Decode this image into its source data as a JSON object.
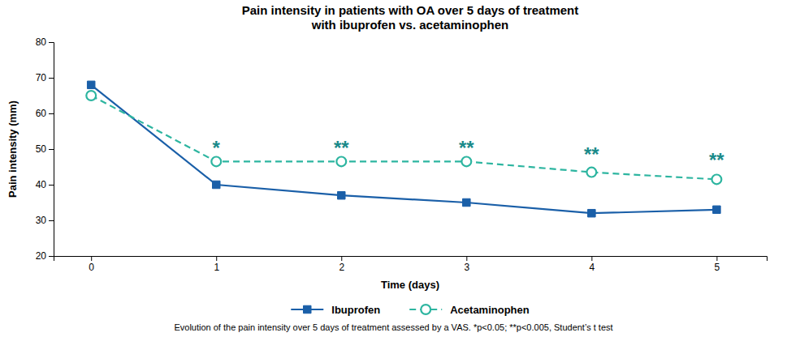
{
  "chart_data": {
    "type": "line",
    "title": "Pain intensity in patients with OA over 5 days of treatment\nwith ibuprofen vs. acetaminophen",
    "x_label": "Time (days)",
    "y_label": "Pain intensity (mm)",
    "footnote": "Evolution of the pain intensity over 5 days of treatment assessed by a VAS. *p<0.05; **p<0.005, Student’s t test",
    "x": [
      0,
      1,
      2,
      3,
      4,
      5
    ],
    "series": [
      {
        "name": "Ibuprofen",
        "color": "#1a5fa8",
        "marker": "square",
        "line_style": "solid",
        "values": [
          68,
          40,
          37,
          35,
          32,
          33
        ]
      },
      {
        "name": "Acetaminophen",
        "color": "#2db5a0",
        "marker": "circle",
        "line_style": "dashed",
        "values": [
          65,
          46.5,
          46.5,
          46.5,
          43.5,
          41.5
        ]
      }
    ],
    "annotations": [
      {
        "text": "*",
        "x": 1,
        "y": 51.5,
        "color": "#1a8a8a"
      },
      {
        "text": "**",
        "x": 2,
        "y": 51.5,
        "color": "#1a8a8a"
      },
      {
        "text": "**",
        "x": 3,
        "y": 51.5,
        "color": "#1a8a8a"
      },
      {
        "text": "**",
        "x": 4,
        "y": 49.5,
        "color": "#1a8a8a"
      },
      {
        "text": "**",
        "x": 5,
        "y": 48.0,
        "color": "#1a8a8a"
      }
    ],
    "xlim": [
      -0.3,
      5.4
    ],
    "ylim": [
      20,
      80
    ],
    "xticks": [
      0,
      1,
      2,
      3,
      4,
      5
    ],
    "yticks": [
      20,
      30,
      40,
      50,
      60,
      70,
      80
    ],
    "grid": false,
    "legend": "bottom"
  }
}
